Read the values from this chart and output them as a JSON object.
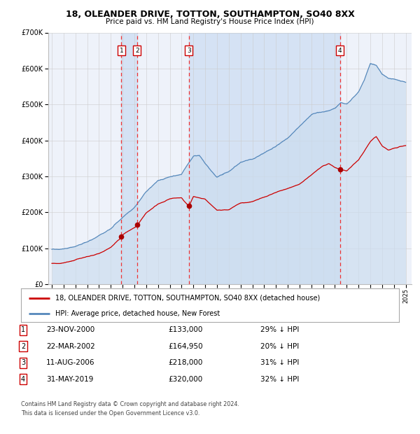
{
  "title": "18, OLEANDER DRIVE, TOTTON, SOUTHAMPTON, SO40 8XX",
  "subtitle": "Price paid vs. HM Land Registry's House Price Index (HPI)",
  "legend_line1": "18, OLEANDER DRIVE, TOTTON, SOUTHAMPTON, SO40 8XX (detached house)",
  "legend_line2": "HPI: Average price, detached house, New Forest",
  "footer1": "Contains HM Land Registry data © Crown copyright and database right 2024.",
  "footer2": "This data is licensed under the Open Government Licence v3.0.",
  "transactions": [
    {
      "num": 1,
      "date": "23-NOV-2000",
      "price": "£133,000",
      "pct": "29% ↓ HPI",
      "year_x": 2000.9,
      "price_val": 133000
    },
    {
      "num": 2,
      "date": "22-MAR-2002",
      "price": "£164,950",
      "pct": "20% ↓ HPI",
      "year_x": 2002.22,
      "price_val": 164950
    },
    {
      "num": 3,
      "date": "11-AUG-2006",
      "price": "£218,000",
      "pct": "31% ↓ HPI",
      "year_x": 2006.62,
      "price_val": 218000
    },
    {
      "num": 4,
      "date": "31-MAY-2019",
      "price": "£320,000",
      "pct": "32% ↓ HPI",
      "year_x": 2019.42,
      "price_val": 320000
    }
  ],
  "hpi_color": "#5588bb",
  "hpi_fill_color": "#ccddef",
  "price_color": "#cc0000",
  "vline_color": "#ee3333",
  "dot_color": "#aa0000",
  "plot_bg": "#eef2fa",
  "ylim": [
    0,
    700000
  ],
  "xlim_start": 1994.7,
  "xlim_end": 2025.5,
  "ytick_labels": [
    "£0",
    "£100K",
    "£200K",
    "£300K",
    "£400K",
    "£500K",
    "£600K",
    "£700K"
  ],
  "ytick_vals": [
    0,
    100000,
    200000,
    300000,
    400000,
    500000,
    600000,
    700000
  ]
}
